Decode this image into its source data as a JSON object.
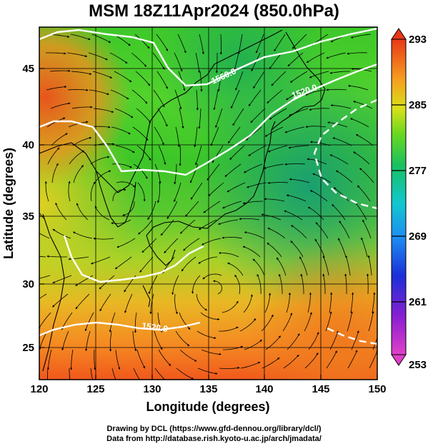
{
  "title": "MSM 18Z11Apr2024 (850.0hPa)",
  "x_axis": {
    "label": "Longitude (degrees)",
    "range": [
      120,
      150
    ],
    "ticks": [
      "120",
      "125",
      "130",
      "135",
      "140",
      "145",
      "150"
    ]
  },
  "y_axis": {
    "label": "Latitude  (degrees)",
    "range": [
      22.4,
      47.6
    ],
    "ticks": [
      "25",
      "30",
      "35",
      "40",
      "45"
    ]
  },
  "colorbar": {
    "range": [
      253,
      293
    ],
    "labels": [
      "293",
      "285",
      "277",
      "269",
      "261",
      "253"
    ]
  },
  "contour_labels": [
    "1560.0",
    "1520.0",
    "1520.0"
  ],
  "credits": [
    "Drawing by DCL (https://www.gfd-dennou.org/library/dcl/)",
    "Data from http://database.rish.kyoto-u.ac.jp/arch/jmadata/"
  ],
  "colors": {
    "warm": "#e8541c",
    "mid": "#3cc428",
    "cool": "#1f9a6e",
    "contour": "#ffffff",
    "streamline": "#000000"
  }
}
